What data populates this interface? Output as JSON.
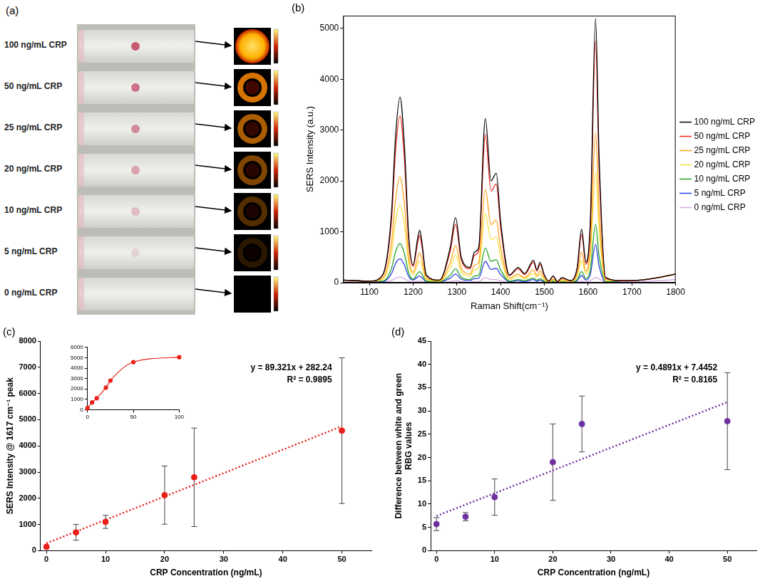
{
  "panel_a": {
    "panel": "(a)",
    "labels": [
      "100 ng/mL CRP",
      "50 ng/mL CRP",
      "25 ng/mL CRP",
      "20 ng/mL CRP",
      "10 ng/mL CRP",
      "5 ng/mL CRP",
      "0 ng/mL CRP"
    ]
  },
  "chart_data": [
    {
      "panel": "(b)",
      "type": "line",
      "x_label": "Raman Shift(cm⁻¹)",
      "y_label": "SERS Intensity (a.u.)",
      "x": [
        1040,
        1100,
        1130,
        1150,
        1160,
        1170,
        1180,
        1190,
        1200,
        1210,
        1215,
        1220,
        1230,
        1260,
        1285,
        1297,
        1310,
        1330,
        1340,
        1350,
        1365,
        1378,
        1390,
        1400,
        1420,
        1440,
        1455,
        1475,
        1483,
        1490,
        1500,
        1510,
        1520,
        1530,
        1540,
        1560,
        1575,
        1585,
        1595,
        1605,
        1617,
        1625,
        1640,
        1680,
        1720,
        1760,
        1800
      ],
      "series": [
        {
          "name": "100 ng/mL CRP",
          "color": "#000000",
          "values": [
            50,
            30,
            150,
            1300,
            2900,
            3650,
            2700,
            900,
            350,
            850,
            1030,
            800,
            150,
            50,
            700,
            1280,
            500,
            300,
            600,
            700,
            3230,
            2000,
            2150,
            1200,
            150,
            300,
            180,
            440,
            250,
            400,
            150,
            30,
            130,
            20,
            100,
            40,
            300,
            1050,
            400,
            1200,
            5200,
            2500,
            100,
            40,
            50,
            100,
            170
          ]
        },
        {
          "name": "50 ng/mL CRP",
          "color": "#e8281e",
          "values": [
            50,
            30,
            140,
            1170,
            2610,
            3280,
            2430,
            810,
            320,
            770,
            930,
            720,
            140,
            50,
            630,
            1150,
            450,
            270,
            540,
            630,
            2910,
            1800,
            1940,
            1080,
            140,
            270,
            160,
            400,
            230,
            360,
            140,
            30,
            120,
            20,
            90,
            40,
            270,
            950,
            360,
            1080,
            4750,
            2250,
            90,
            40,
            50,
            100,
            170
          ]
        },
        {
          "name": "25 ng/mL CRP",
          "color": "#ffa31a",
          "values": [
            50,
            30,
            90,
            740,
            1650,
            2080,
            1540,
            510,
            200,
            480,
            590,
            460,
            90,
            40,
            400,
            730,
            290,
            170,
            340,
            400,
            1840,
            1140,
            1230,
            680,
            90,
            170,
            100,
            250,
            140,
            230,
            90,
            20,
            70,
            10,
            60,
            20,
            170,
            600,
            230,
            680,
            2950,
            1430,
            60,
            40,
            50,
            100,
            170
          ]
        },
        {
          "name": "20 ng/mL CRP",
          "color": "#f2e03c",
          "values": [
            50,
            30,
            60,
            550,
            1220,
            1530,
            1130,
            380,
            150,
            360,
            430,
            340,
            60,
            30,
            290,
            540,
            210,
            130,
            250,
            290,
            1360,
            840,
            900,
            500,
            60,
            130,
            80,
            180,
            110,
            170,
            60,
            10,
            50,
            10,
            40,
            20,
            130,
            440,
            170,
            500,
            2180,
            1050,
            40,
            40,
            50,
            100,
            170
          ]
        },
        {
          "name": "10 ng/mL CRP",
          "color": "#26a326",
          "values": [
            50,
            30,
            30,
            270,
            610,
            770,
            570,
            190,
            70,
            180,
            220,
            170,
            30,
            20,
            150,
            270,
            110,
            60,
            130,
            150,
            680,
            420,
            450,
            250,
            30,
            60,
            40,
            90,
            50,
            80,
            30,
            10,
            30,
            5,
            20,
            10,
            60,
            220,
            80,
            250,
            1150,
            530,
            20,
            40,
            50,
            100,
            170
          ]
        },
        {
          "name": "5 ng/mL CRP",
          "color": "#2a3fe6",
          "values": [
            50,
            30,
            20,
            170,
            380,
            470,
            350,
            120,
            50,
            110,
            130,
            100,
            20,
            20,
            90,
            170,
            70,
            40,
            80,
            90,
            420,
            260,
            280,
            160,
            20,
            40,
            20,
            60,
            30,
            50,
            20,
            5,
            20,
            0,
            10,
            5,
            40,
            140,
            50,
            160,
            750,
            330,
            10,
            40,
            50,
            100,
            170
          ]
        },
        {
          "name": "0 ng/mL CRP",
          "color": "#d9a6e6",
          "values": [
            20,
            10,
            5,
            40,
            90,
            110,
            80,
            30,
            10,
            30,
            30,
            20,
            5,
            10,
            20,
            40,
            20,
            10,
            20,
            20,
            100,
            60,
            60,
            40,
            5,
            10,
            5,
            10,
            10,
            10,
            5,
            0,
            5,
            0,
            5,
            0,
            10,
            30,
            10,
            40,
            100,
            80,
            5,
            20,
            20,
            40,
            60
          ]
        }
      ],
      "xlim": [
        1040,
        1800
      ],
      "xticks": [
        1100,
        1200,
        1300,
        1400,
        1500,
        1600,
        1700,
        1800
      ],
      "ylim": [
        0,
        5250
      ],
      "yticks": [
        0,
        1000,
        2000,
        3000,
        4000,
        5000
      ],
      "grid": false,
      "legend": "right",
      "marker": "none",
      "line_style": "solid"
    },
    {
      "panel": "(c)",
      "type": "scatter",
      "x_label": "CRP Concentration (ng/mL)",
      "y_label": "SERS Intensity @ 1617 cm⁻¹ peak",
      "x": [
        0,
        5,
        10,
        20,
        25,
        50
      ],
      "values": [
        150,
        700,
        1100,
        2120,
        2800,
        4580
      ],
      "errors": [
        30,
        300,
        250,
        1110,
        1880,
        2780
      ],
      "color": "#e8201a",
      "marker": "circle",
      "xlim": [
        -1,
        55
      ],
      "xticks": [
        0,
        10,
        20,
        30,
        40,
        50
      ],
      "ylim": [
        0,
        8000
      ],
      "yticks": [
        0,
        1000,
        2000,
        3000,
        4000,
        5000,
        6000,
        7000,
        8000
      ],
      "grid": false,
      "fit": {
        "slope": 89.321,
        "intercept": 282.24,
        "equation": "y = 89.321x + 282.24",
        "r2": "R² = 0.9895",
        "color": "#e8201a",
        "line_style": "dotted"
      },
      "inset": {
        "type": "line",
        "x": [
          0,
          5,
          10,
          20,
          25,
          50,
          100
        ],
        "values": [
          150,
          700,
          1100,
          2120,
          2800,
          4580,
          5050
        ],
        "color": "#e8201a",
        "marker": "circle",
        "line_style": "solid",
        "xlim": [
          0,
          100
        ],
        "xticks": [
          0,
          50,
          100
        ],
        "ylim": [
          0,
          6000
        ],
        "yticks": [
          0,
          1000,
          2000,
          3000,
          4000,
          5000,
          6000
        ],
        "grid": false
      }
    },
    {
      "panel": "(d)",
      "type": "scatter",
      "x_label": "CRP Concentration (ng/mL)",
      "y_label": "Difference between white and green RBG values",
      "x": [
        0,
        5,
        10,
        20,
        25,
        50
      ],
      "values": [
        5.7,
        7.3,
        11.5,
        19.0,
        27.2,
        27.8
      ],
      "errors": [
        1.4,
        0.9,
        3.9,
        8.2,
        6.0,
        10.4
      ],
      "color": "#7030a0",
      "marker": "circle",
      "xlim": [
        -1,
        55
      ],
      "xticks": [
        0,
        10,
        20,
        30,
        40,
        50
      ],
      "ylim": [
        0,
        45
      ],
      "yticks": [
        0,
        5,
        10,
        15,
        20,
        25,
        30,
        35,
        40,
        45
      ],
      "grid": false,
      "fit": {
        "slope": 0.4891,
        "intercept": 7.4452,
        "equation": "y = 0.4891x + 7.4452",
        "r2": "R² = 0.8165",
        "color": "#7030a0",
        "line_style": "dotted"
      }
    }
  ]
}
